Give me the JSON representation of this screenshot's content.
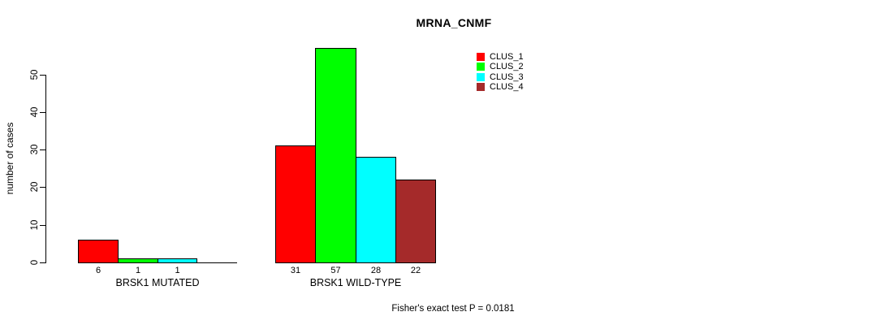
{
  "chart_data": {
    "type": "bar",
    "title": "MRNA_CNMF",
    "xlabel": "",
    "ylabel": "number of cases",
    "categories": [
      "BRSK1 MUTATED",
      "BRSK1 WILD-TYPE"
    ],
    "series": [
      {
        "name": "CLUS_1",
        "color": "#ff0000",
        "values": [
          6,
          31
        ]
      },
      {
        "name": "CLUS_2",
        "color": "#00ff00",
        "values": [
          1,
          57
        ]
      },
      {
        "name": "CLUS_3",
        "color": "#00ffff",
        "values": [
          1,
          28
        ]
      },
      {
        "name": "CLUS_4",
        "color": "#a52a2a",
        "values": [
          0,
          22
        ]
      }
    ],
    "y_ticks": [
      0,
      10,
      20,
      30,
      40,
      50
    ],
    "ylim": [
      0,
      57
    ],
    "grid": false,
    "bar_value_labels_shown": true,
    "zero_value_labels_hidden": true,
    "legend_position": "top-right",
    "legend_entries": [
      "CLUS_1",
      "CLUS_2",
      "CLUS_3",
      "CLUS_4"
    ],
    "annotation": "Fisher's exact test P = 0.0181",
    "background_color": "#ffffff",
    "text_color": "#000000"
  }
}
